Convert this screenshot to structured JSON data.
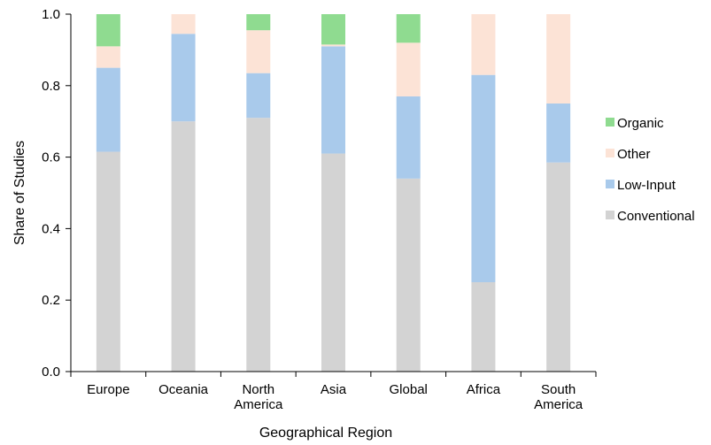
{
  "chart_data": {
    "type": "bar",
    "stacked": true,
    "title": "",
    "xlabel": "Geographical Region",
    "ylabel": "Share of  Studies",
    "ylim": [
      0,
      1.0
    ],
    "yticks": [
      "0.0",
      "0.2",
      "0.4",
      "0.6",
      "0.8",
      "1.0"
    ],
    "grid": false,
    "legend_position": "right",
    "categories": [
      [
        "Europe"
      ],
      [
        "Oceania"
      ],
      [
        "North",
        "America"
      ],
      [
        "Asia"
      ],
      [
        "Global"
      ],
      [
        "Africa"
      ],
      [
        "South",
        "America"
      ]
    ],
    "series": [
      {
        "name": "Conventional",
        "color": "#d3d3d3",
        "values": [
          0.615,
          0.7,
          0.71,
          0.61,
          0.54,
          0.25,
          0.585
        ]
      },
      {
        "name": "Low-Input",
        "color": "#a9caeb",
        "values": [
          0.235,
          0.245,
          0.125,
          0.3,
          0.23,
          0.58,
          0.165
        ]
      },
      {
        "name": "Other",
        "color": "#fce3d6",
        "values": [
          0.06,
          0.055,
          0.12,
          0.005,
          0.15,
          0.17,
          0.25
        ]
      },
      {
        "name": "Organic",
        "color": "#8fdb90",
        "values": [
          0.09,
          0.0,
          0.045,
          0.085,
          0.08,
          0.0,
          0.0
        ]
      }
    ],
    "legend_order": [
      "Organic",
      "Other",
      "Low-Input",
      "Conventional"
    ]
  }
}
